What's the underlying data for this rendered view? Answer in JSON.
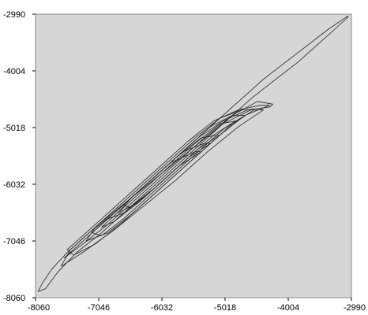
{
  "chart_data": {
    "type": "line",
    "title": "",
    "xlabel": "",
    "ylabel": "",
    "xlim": [
      -8060,
      -2990
    ],
    "ylim": [
      -8060,
      -2990
    ],
    "x_ticks": [
      -8060,
      -7046,
      -6032,
      -5018,
      -4004,
      -2990
    ],
    "y_ticks": [
      -2990,
      -4004,
      -5018,
      -6032,
      -7046,
      -8060
    ],
    "x_tick_labels": [
      "-8060",
      "-7046",
      "-6032",
      "-5018",
      "-4004",
      "-2990"
    ],
    "y_tick_labels": [
      "-2990",
      "-4004",
      "-5018",
      "-6032",
      "-7046",
      "-8060"
    ],
    "grid": false,
    "colors": {
      "background": "#d6d6d6",
      "line": "#222222"
    },
    "series": [
      {
        "x": [
          -3040,
          -3350,
          -3700,
          -4050,
          -4400,
          -4800,
          -5200,
          -5600,
          -6000,
          -6400,
          -6800,
          -7200,
          -7550,
          -7800,
          -7950,
          -8020,
          -7900,
          -7700,
          -7400,
          -7000,
          -6600,
          -6200,
          -5800,
          -5400,
          -5000,
          -4600,
          -4200,
          -3850,
          -3550,
          -3250,
          -3060,
          -3040
        ],
        "y": [
          -3020,
          -3250,
          -3550,
          -3850,
          -4150,
          -4550,
          -4950,
          -5350,
          -5750,
          -6150,
          -6550,
          -6900,
          -7250,
          -7550,
          -7800,
          -7950,
          -7900,
          -7600,
          -7250,
          -6900,
          -6500,
          -6100,
          -5700,
          -5300,
          -4900,
          -4500,
          -4150,
          -3850,
          -3550,
          -3250,
          -3060,
          -3020
        ]
      },
      {
        "x": [
          -4250,
          -4500,
          -4900,
          -5300,
          -5700,
          -6100,
          -6500,
          -6900,
          -7300,
          -7600,
          -7400,
          -7050,
          -6650,
          -6250,
          -5850,
          -5450,
          -5050,
          -4650,
          -4300,
          -4250
        ],
        "y": [
          -4600,
          -4550,
          -4800,
          -5150,
          -5550,
          -5950,
          -6350,
          -6750,
          -7100,
          -7350,
          -7150,
          -6800,
          -6400,
          -6000,
          -5600,
          -5200,
          -4900,
          -4700,
          -4650,
          -4600
        ]
      },
      {
        "x": [
          -4300,
          -4700,
          -5100,
          -5500,
          -5900,
          -6300,
          -6700,
          -7100,
          -7450,
          -7550,
          -7200,
          -6800,
          -6400,
          -6000,
          -5600,
          -5200,
          -4800,
          -4450,
          -4300
        ],
        "y": [
          -4620,
          -4800,
          -5150,
          -5550,
          -5950,
          -6350,
          -6750,
          -7100,
          -7300,
          -7200,
          -6850,
          -6450,
          -6050,
          -5650,
          -5250,
          -4900,
          -4700,
          -4620,
          -4620
        ]
      },
      {
        "x": [
          -4550,
          -4900,
          -5300,
          -5700,
          -6100,
          -6500,
          -6900,
          -7250,
          -7100,
          -6700,
          -6300,
          -5900,
          -5500,
          -5100,
          -4750,
          -4550
        ],
        "y": [
          -4700,
          -4950,
          -5350,
          -5750,
          -6150,
          -6550,
          -6900,
          -7050,
          -6800,
          -6400,
          -6000,
          -5600,
          -5200,
          -4850,
          -4700,
          -4700
        ]
      },
      {
        "x": [
          -4700,
          -5050,
          -5450,
          -5850,
          -6250,
          -6650,
          -7000,
          -7150,
          -6850,
          -6450,
          -6050,
          -5650,
          -5250,
          -4900,
          -4700
        ],
        "y": [
          -4800,
          -5050,
          -5450,
          -5850,
          -6250,
          -6650,
          -6950,
          -6900,
          -6600,
          -6200,
          -5800,
          -5400,
          -5000,
          -4800,
          -4800
        ]
      },
      {
        "x": [
          -4850,
          -5200,
          -5600,
          -6000,
          -6400,
          -6800,
          -7000,
          -6700,
          -6300,
          -5900,
          -5500,
          -5100,
          -4850
        ],
        "y": [
          -4900,
          -5150,
          -5550,
          -5950,
          -6350,
          -6700,
          -6800,
          -6500,
          -6100,
          -5700,
          -5300,
          -4950,
          -4900
        ]
      },
      {
        "x": [
          -5100,
          -5450,
          -5850,
          -6250,
          -6650,
          -6900,
          -6600,
          -6200,
          -5800,
          -5400,
          -5100
        ],
        "y": [
          -5150,
          -5400,
          -5800,
          -6200,
          -6550,
          -6650,
          -6350,
          -5950,
          -5550,
          -5200,
          -5150
        ]
      },
      {
        "x": [
          -5250,
          -5600,
          -6000,
          -6400,
          -6750,
          -6500,
          -6100,
          -5700,
          -5350,
          -5250
        ],
        "y": [
          -5300,
          -5550,
          -5950,
          -6350,
          -6550,
          -6250,
          -5850,
          -5450,
          -5300,
          -5300
        ]
      },
      {
        "x": [
          -5400,
          -5750,
          -6150,
          -6550,
          -6650,
          -6300,
          -5900,
          -5500,
          -5400
        ],
        "y": [
          -5450,
          -5700,
          -6100,
          -6450,
          -6400,
          -6050,
          -5650,
          -5450,
          -5450
        ]
      },
      {
        "x": [
          -4400,
          -4800,
          -5300,
          -5800,
          -6300,
          -6800,
          -7300,
          -7650,
          -7500,
          -7050,
          -6550,
          -6050,
          -5550,
          -5050,
          -4600,
          -4400
        ],
        "y": [
          -4700,
          -5000,
          -5450,
          -5950,
          -6400,
          -6850,
          -7250,
          -7500,
          -7200,
          -6750,
          -6300,
          -5850,
          -5400,
          -4950,
          -4700,
          -4700
        ]
      }
    ]
  }
}
